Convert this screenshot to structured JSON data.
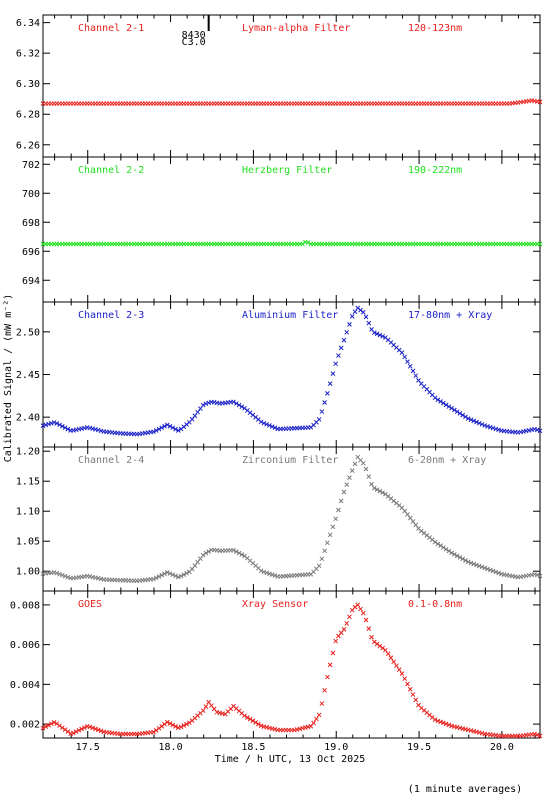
{
  "figure": {
    "ylabel": "Calibrated Signal / (mW m⁻²)",
    "xlabel": "Time / h UTC, 13 Oct 2025",
    "note": "(1 minute averages)"
  },
  "flare_marker": {
    "x": 18.23,
    "label_top": "8430",
    "label_bottom": "C3.0"
  },
  "chart_data": [
    {
      "type": "scatter",
      "channel": "Channel 2-1",
      "filter": "Lyman-alpha Filter",
      "band": "120-123nm",
      "color": "#e8201c",
      "xlim": [
        17.23,
        20.23
      ],
      "ylim": [
        6.252,
        6.345
      ],
      "yticks": [
        6.26,
        6.28,
        6.3,
        6.32,
        6.34
      ],
      "ytick_labels": [
        "6.26",
        "6.28",
        "6.30",
        "6.32",
        "6.34"
      ],
      "x": [
        17.23,
        18.0,
        19.0,
        20.0,
        20.05,
        20.12,
        20.18,
        20.23
      ],
      "y": [
        6.287,
        6.287,
        6.287,
        6.287,
        6.287,
        6.288,
        6.289,
        6.288
      ]
    },
    {
      "type": "scatter",
      "channel": "Channel 2-2",
      "filter": "Herzberg Filter",
      "band": "190-222nm",
      "color": "#22e01f",
      "xlim": [
        17.23,
        20.23
      ],
      "ylim": [
        692.5,
        702.5
      ],
      "yticks": [
        694,
        696,
        698,
        700,
        702
      ],
      "ytick_labels": [
        "694",
        "696",
        "698",
        "700",
        "702"
      ],
      "x": [
        17.23,
        18.0,
        18.8,
        18.82,
        18.84,
        19.5,
        20.0,
        20.23
      ],
      "y": [
        696.5,
        696.5,
        696.5,
        696.7,
        696.5,
        696.5,
        696.5,
        696.5
      ]
    },
    {
      "type": "scatter",
      "channel": "Channel 2-3",
      "filter": "Aluminium Filter",
      "band": "17-80nm + Xray",
      "color": "#1c22c8",
      "xlim": [
        17.23,
        20.23
      ],
      "ylim": [
        2.365,
        2.535
      ],
      "yticks": [
        2.4,
        2.45,
        2.5
      ],
      "ytick_labels": [
        "2.40",
        "2.45",
        "2.50"
      ],
      "x": [
        17.23,
        17.3,
        17.4,
        17.5,
        17.6,
        17.7,
        17.8,
        17.9,
        17.98,
        18.05,
        18.12,
        18.2,
        18.25,
        18.3,
        18.38,
        18.45,
        18.55,
        18.65,
        18.75,
        18.85,
        18.9,
        18.95,
        19.0,
        19.05,
        19.1,
        19.13,
        19.17,
        19.22,
        19.3,
        19.4,
        19.5,
        19.6,
        19.7,
        19.8,
        19.9,
        20.0,
        20.1,
        20.2,
        20.23
      ],
      "y": [
        2.39,
        2.394,
        2.384,
        2.388,
        2.383,
        2.381,
        2.38,
        2.383,
        2.391,
        2.384,
        2.395,
        2.415,
        2.418,
        2.416,
        2.418,
        2.41,
        2.394,
        2.386,
        2.387,
        2.388,
        2.398,
        2.43,
        2.465,
        2.492,
        2.52,
        2.528,
        2.522,
        2.5,
        2.493,
        2.475,
        2.442,
        2.422,
        2.41,
        2.398,
        2.39,
        2.384,
        2.382,
        2.386,
        2.384
      ]
    },
    {
      "type": "scatter",
      "channel": "Channel 2-4",
      "filter": "Zirconium Filter",
      "band": "6-20nm + Xray",
      "color": "#7a7a7a",
      "xlim": [
        17.23,
        20.23
      ],
      "ylim": [
        0.967,
        1.207
      ],
      "yticks": [
        1.0,
        1.05,
        1.1,
        1.15,
        1.2
      ],
      "ytick_labels": [
        "1.00",
        "1.05",
        "1.10",
        "1.15",
        "1.20"
      ],
      "x": [
        17.23,
        17.3,
        17.4,
        17.5,
        17.6,
        17.7,
        17.8,
        17.9,
        17.98,
        18.05,
        18.12,
        18.2,
        18.25,
        18.3,
        18.38,
        18.45,
        18.55,
        18.65,
        18.75,
        18.85,
        18.9,
        18.95,
        19.0,
        19.05,
        19.1,
        19.13,
        19.17,
        19.22,
        19.3,
        19.4,
        19.5,
        19.6,
        19.7,
        19.8,
        19.9,
        20.0,
        20.1,
        20.2,
        20.23
      ],
      "y": [
        0.996,
        0.998,
        0.988,
        0.992,
        0.986,
        0.985,
        0.984,
        0.987,
        0.998,
        0.99,
        1.0,
        1.028,
        1.036,
        1.034,
        1.035,
        1.025,
        1.0,
        0.991,
        0.993,
        0.995,
        1.01,
        1.05,
        1.09,
        1.135,
        1.17,
        1.19,
        1.178,
        1.14,
        1.128,
        1.105,
        1.07,
        1.048,
        1.03,
        1.015,
        1.005,
        0.995,
        0.99,
        0.995,
        0.992
      ]
    },
    {
      "type": "scatter",
      "channel": "GOES",
      "filter": "Xray Sensor",
      "band": "0.1-0.8nm",
      "color": "#e8201c",
      "xlim": [
        17.23,
        20.23
      ],
      "ylim": [
        0.0013,
        0.0087
      ],
      "yticks": [
        0.002,
        0.004,
        0.006,
        0.008
      ],
      "ytick_labels": [
        "0.002",
        "0.004",
        "0.006",
        "0.008"
      ],
      "x": [
        17.23,
        17.3,
        17.4,
        17.5,
        17.6,
        17.7,
        17.8,
        17.9,
        17.98,
        18.05,
        18.12,
        18.2,
        18.23,
        18.28,
        18.33,
        18.38,
        18.45,
        18.55,
        18.65,
        18.75,
        18.85,
        18.9,
        18.95,
        19.0,
        19.05,
        19.1,
        19.13,
        19.17,
        19.22,
        19.3,
        19.4,
        19.5,
        19.6,
        19.7,
        19.8,
        19.9,
        20.0,
        20.1,
        20.2,
        20.23
      ],
      "y": [
        0.0018,
        0.0021,
        0.0015,
        0.0019,
        0.0016,
        0.0015,
        0.0015,
        0.0016,
        0.0021,
        0.0018,
        0.0021,
        0.0027,
        0.0031,
        0.0026,
        0.0025,
        0.0029,
        0.0024,
        0.0019,
        0.0017,
        0.0017,
        0.0019,
        0.0025,
        0.0045,
        0.0063,
        0.0068,
        0.0078,
        0.008,
        0.0075,
        0.0062,
        0.0057,
        0.0045,
        0.0029,
        0.0022,
        0.0019,
        0.0017,
        0.0015,
        0.0014,
        0.0014,
        0.0015,
        0.0014
      ]
    }
  ],
  "xaxis": {
    "ticks": [
      17.5,
      18.0,
      18.5,
      19.0,
      19.5,
      20.0
    ],
    "tick_labels": [
      "17.5",
      "18.0",
      "18.5",
      "19.0",
      "19.5",
      "20.0"
    ],
    "minor_step": 0.1
  }
}
